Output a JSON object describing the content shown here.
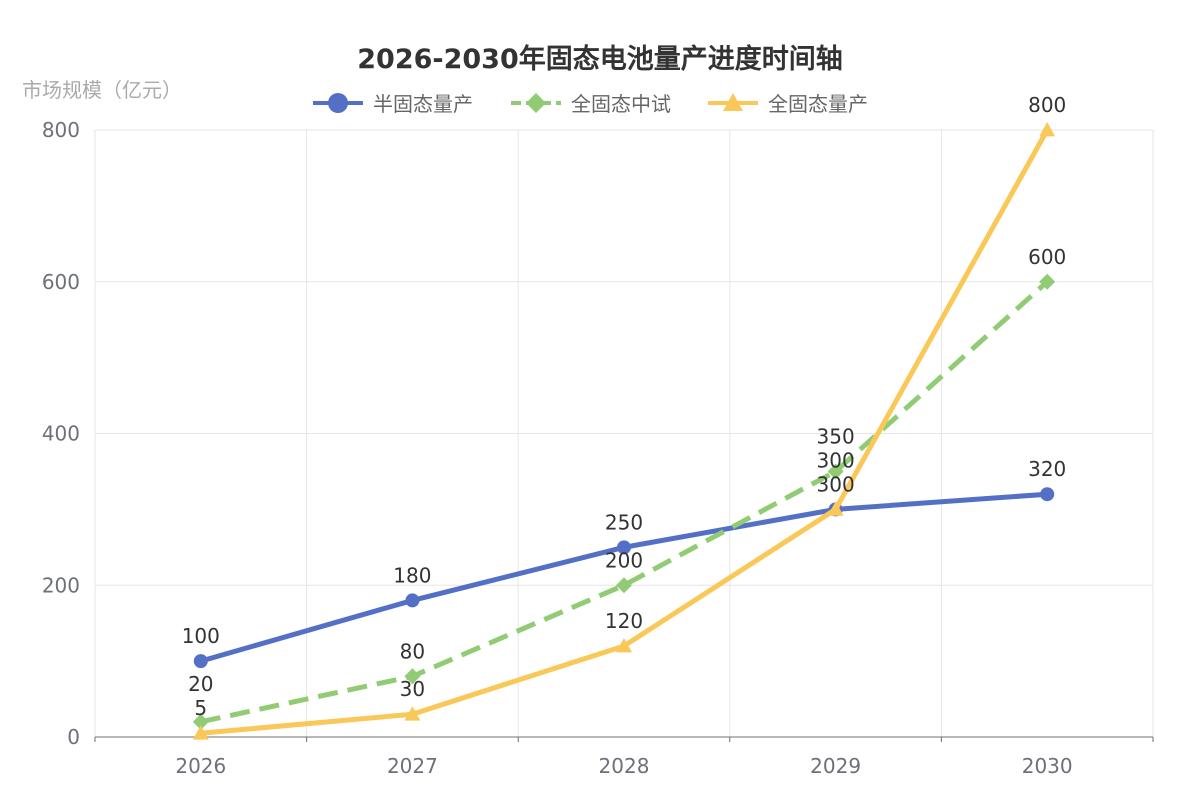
{
  "chart_data": {
    "type": "line",
    "title": "2026-2030年固态电池量产进度时间轴",
    "xlabel": "",
    "ylabel": "市场规模（亿元）",
    "categories": [
      "2026",
      "2027",
      "2028",
      "2029",
      "2030"
    ],
    "ylim": [
      0,
      800
    ],
    "yticks": [
      0,
      200,
      400,
      600,
      800
    ],
    "grid": true,
    "legend_position": "top-center",
    "series": [
      {
        "name": "半固态量产",
        "values": [
          100,
          180,
          250,
          300,
          320
        ],
        "color": "#5470c6",
        "marker": "circle",
        "dashed": false
      },
      {
        "name": "全固态中试",
        "values": [
          20,
          80,
          200,
          350,
          600
        ],
        "color": "#91cc75",
        "marker": "diamond",
        "dashed": true
      },
      {
        "name": "全固态量产",
        "values": [
          5,
          30,
          120,
          300,
          800
        ],
        "color": "#fac858",
        "marker": "triangle",
        "dashed": false
      }
    ]
  }
}
